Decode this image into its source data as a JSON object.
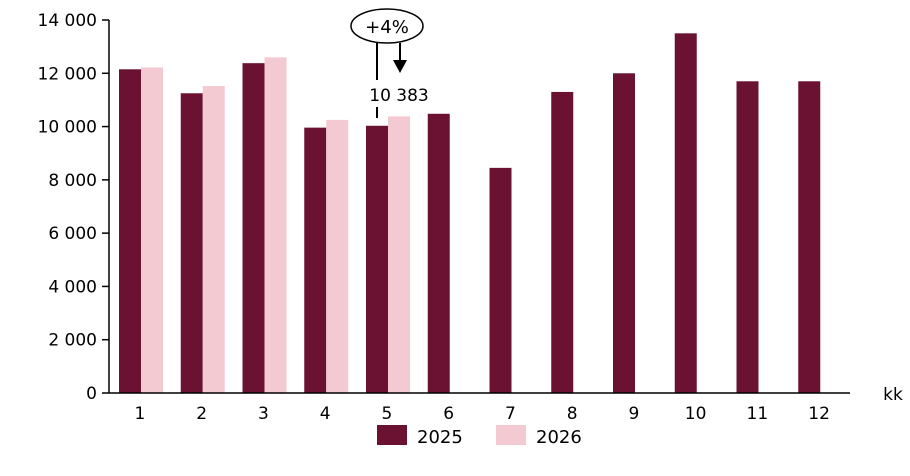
{
  "chart_data": {
    "type": "bar",
    "categories": [
      "1",
      "2",
      "3",
      "4",
      "5",
      "6",
      "7",
      "8",
      "9",
      "10",
      "11",
      "12"
    ],
    "xlabel": "kk",
    "ylabel": "",
    "ylim": [
      0,
      14000
    ],
    "yticks": [
      0,
      2000,
      4000,
      6000,
      8000,
      10000,
      12000,
      14000
    ],
    "ytick_labels": [
      "0",
      "2 000",
      "4 000",
      "6 000",
      "8 000",
      "10 000",
      "12 000",
      "14 000"
    ],
    "grid": false,
    "legend": "bottom-center",
    "series": [
      {
        "name": "2025",
        "color": "#6b1232",
        "values": [
          12150,
          11250,
          12380,
          9960,
          10030,
          10480,
          8450,
          11300,
          12000,
          13500,
          11700,
          11700
        ]
      },
      {
        "name": "2026",
        "color": "#f4cad2",
        "values": [
          12220,
          11520,
          12600,
          10250,
          10383,
          null,
          null,
          null,
          null,
          null,
          null,
          null
        ]
      }
    ],
    "annotations": [
      {
        "text": "+4%",
        "category": "5",
        "shape": "ellipse-callout"
      },
      {
        "text": "10 383",
        "category": "5",
        "series": "2026"
      }
    ]
  }
}
